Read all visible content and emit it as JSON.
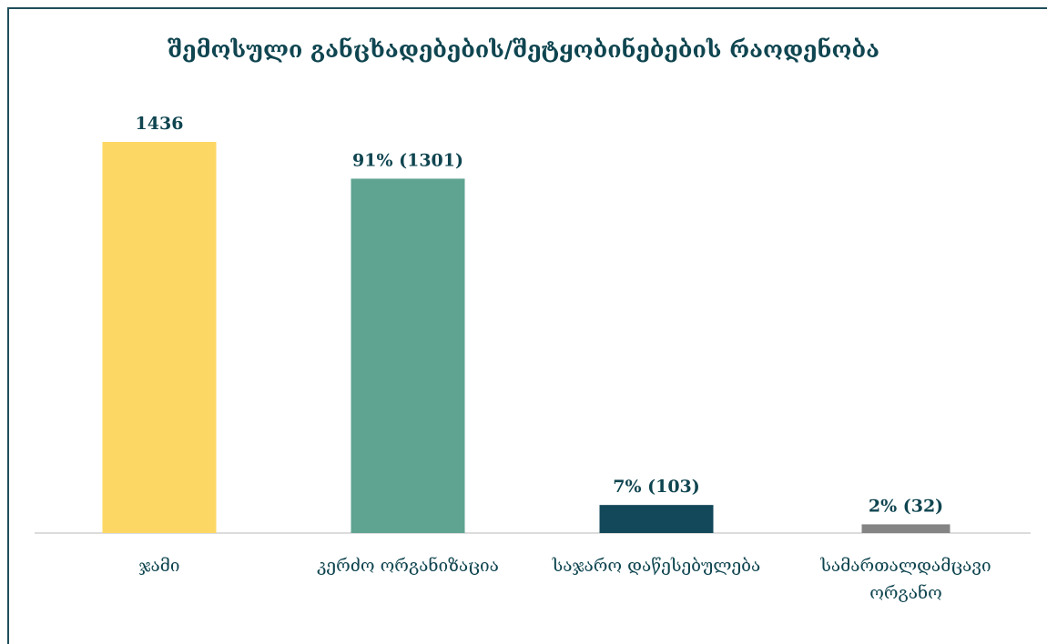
{
  "chart_data": {
    "type": "bar",
    "title": "შემოსული განცხადებების/შეტყობინებების რაოდენობა",
    "xlabel": "",
    "ylabel": "",
    "ylim": [
      0,
      1436
    ],
    "grid": false,
    "legend": "none",
    "categories": [
      [
        "ჯამი"
      ],
      [
        "კერძო ორგანიზაცია"
      ],
      [
        "საჯარო დაწესებულება"
      ],
      [
        "სამართალდამცავი",
        "ორგანო"
      ]
    ],
    "values": [
      1436,
      1301,
      103,
      32
    ],
    "data_labels": [
      "1436",
      "91% (1301)",
      "7% (103)",
      "2% (32)"
    ],
    "colors": [
      "#fdd764",
      "#5fa391",
      "#13475a",
      "#848484"
    ]
  }
}
